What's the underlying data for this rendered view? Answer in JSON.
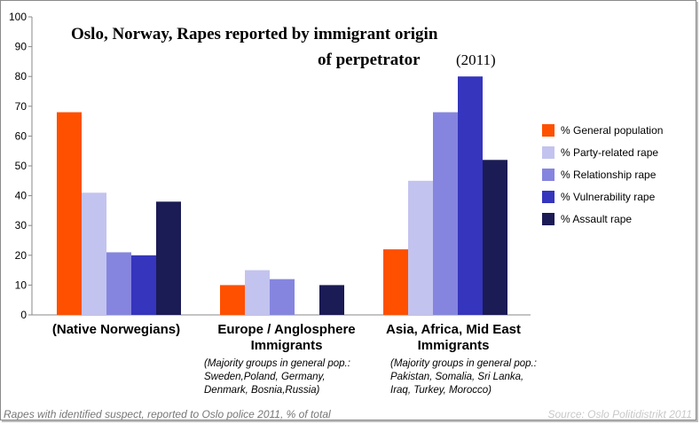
{
  "chart_data": {
    "type": "bar",
    "title_line1": "Oslo, Norway, Rapes reported by immigrant origin",
    "title_line2": "of perpetrator",
    "title_year": "(2011)",
    "ylim": [
      0,
      100
    ],
    "yticks": [
      "0",
      "10",
      "20",
      "30",
      "40",
      "50",
      "60",
      "70",
      "80",
      "90",
      "100"
    ],
    "categories": [
      {
        "label": "(Native Norwegians)",
        "label2": "",
        "note": []
      },
      {
        "label": "Europe / Anglosphere",
        "label2": "Immigrants",
        "note": [
          "(Majority groups in general pop.:",
          "Sweden,Poland, Germany,",
          "Denmark, Bosnia,Russia)"
        ]
      },
      {
        "label": "Asia, Africa, Mid East",
        "label2": "Immigrants",
        "note": [
          "(Majority groups in general pop.:",
          "Pakistan, Somalia, Sri Lanka,",
          "Iraq, Turkey, Morocco)"
        ]
      }
    ],
    "series": [
      {
        "name": "% General population",
        "color": "#ff5000",
        "values": [
          68,
          10,
          22
        ]
      },
      {
        "name": "% Party-related rape",
        "color": "#c3c3ef",
        "values": [
          41,
          15,
          45
        ]
      },
      {
        "name": "% Relationship rape",
        "color": "#8585df",
        "values": [
          21,
          12,
          68
        ]
      },
      {
        "name": "% Vulnerability rape",
        "color": "#3535bd",
        "values": [
          20,
          0,
          80
        ]
      },
      {
        "name": "% Assault rape",
        "color": "#1b1b55",
        "values": [
          38,
          10,
          52
        ]
      }
    ],
    "legend_position": "right",
    "grid": false,
    "footnote_left": "Rapes with identified suspect, reported to Oslo police 2011, % of total",
    "footnote_right": "Source: Oslo Politidistrikt 2011"
  }
}
